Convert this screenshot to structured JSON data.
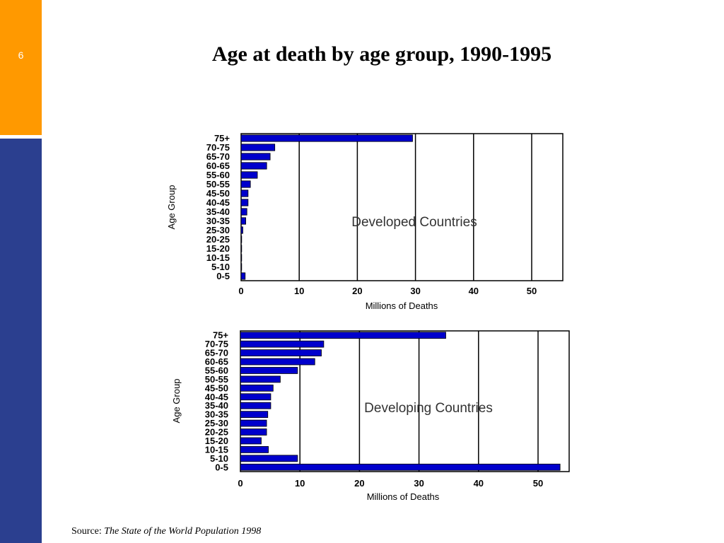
{
  "slide": {
    "page_number": "6",
    "title": "Age at death by age group, 1990-1995",
    "source_prefix": "Source: ",
    "source_title": "The State of the World Population 1998"
  },
  "colors": {
    "sidebar_orange": "#ff9900",
    "sidebar_blue": "#2b3f8f",
    "bar_fill": "#0000cc"
  },
  "chart_data": [
    {
      "type": "bar",
      "orientation": "horizontal",
      "annotation": "Developed Countries",
      "xlabel": "Millions of Deaths",
      "ylabel": "Age Group",
      "xlim": [
        0,
        55
      ],
      "xticks": [
        0,
        10,
        20,
        30,
        40,
        50
      ],
      "grid": "vertical",
      "categories": [
        "75+",
        "70-75",
        "65-70",
        "60-65",
        "55-60",
        "50-55",
        "45-50",
        "40-45",
        "35-40",
        "30-35",
        "25-30",
        "20-25",
        "15-20",
        "10-15",
        "5-10",
        "0-5"
      ],
      "values": [
        29.5,
        5.8,
        5.0,
        4.4,
        2.8,
        1.6,
        1.2,
        1.2,
        1.0,
        0.8,
        0.3,
        0.1,
        0.1,
        0.1,
        0.1,
        0.7
      ]
    },
    {
      "type": "bar",
      "orientation": "horizontal",
      "annotation": "Developing Countries",
      "xlabel": "Millions of Deaths",
      "ylabel": "Age Group",
      "xlim": [
        0,
        55
      ],
      "xticks": [
        0,
        10,
        20,
        30,
        40,
        50
      ],
      "grid": "vertical",
      "categories": [
        "75+",
        "70-75",
        "65-70",
        "60-65",
        "55-60",
        "50-55",
        "45-50",
        "40-45",
        "35-40",
        "30-35",
        "25-30",
        "20-25",
        "15-20",
        "10-15",
        "5-10",
        "0-5"
      ],
      "values": [
        34.5,
        14.0,
        13.6,
        12.5,
        9.6,
        6.7,
        5.5,
        5.1,
        5.1,
        4.6,
        4.4,
        4.4,
        3.5,
        4.7,
        9.6,
        53.7
      ]
    }
  ]
}
